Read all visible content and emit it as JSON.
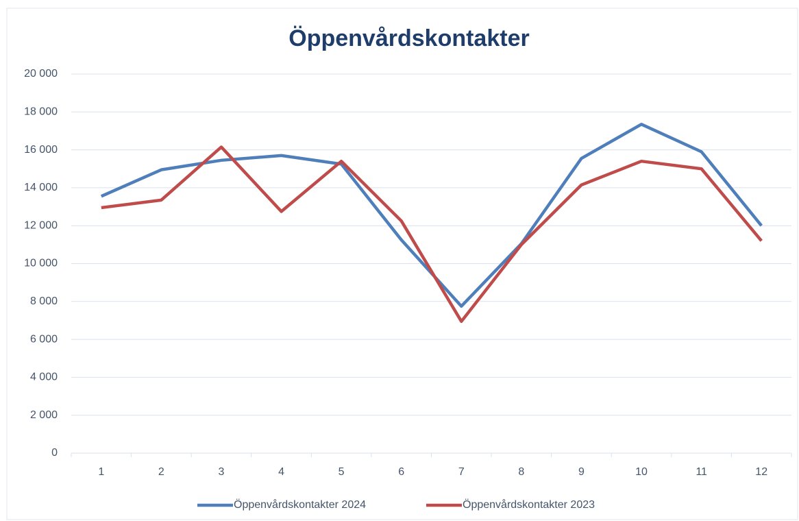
{
  "chart_data": {
    "type": "line",
    "title": "Öppenvårdskontakter",
    "categories": [
      "1",
      "2",
      "3",
      "4",
      "5",
      "6",
      "7",
      "8",
      "9",
      "10",
      "11",
      "12"
    ],
    "series": [
      {
        "name": "Öppenvårdskontakter 2024",
        "color": "#4f7fba",
        "values": [
          13550,
          14950,
          15450,
          15700,
          15250,
          11250,
          7750,
          11050,
          15550,
          17350,
          15900,
          12000
        ]
      },
      {
        "name": "Öppenvårdskontakter 2023",
        "color": "#bf4b4b",
        "values": [
          12950,
          13350,
          16150,
          12750,
          15400,
          12250,
          6950,
          11000,
          14150,
          15400,
          15000,
          11200
        ]
      }
    ],
    "ylim": [
      0,
      20000
    ],
    "yticks": [
      {
        "value": 0,
        "label": "0"
      },
      {
        "value": 2000,
        "label": "2 000"
      },
      {
        "value": 4000,
        "label": "4 000"
      },
      {
        "value": 6000,
        "label": "6 000"
      },
      {
        "value": 8000,
        "label": "8 000"
      },
      {
        "value": 10000,
        "label": "10 000"
      },
      {
        "value": 12000,
        "label": "12 000"
      },
      {
        "value": 14000,
        "label": "14 000"
      },
      {
        "value": 16000,
        "label": "16 000"
      },
      {
        "value": 18000,
        "label": "18 000"
      },
      {
        "value": 20000,
        "label": "20 000"
      }
    ],
    "grid": true,
    "legend": "bottom"
  }
}
